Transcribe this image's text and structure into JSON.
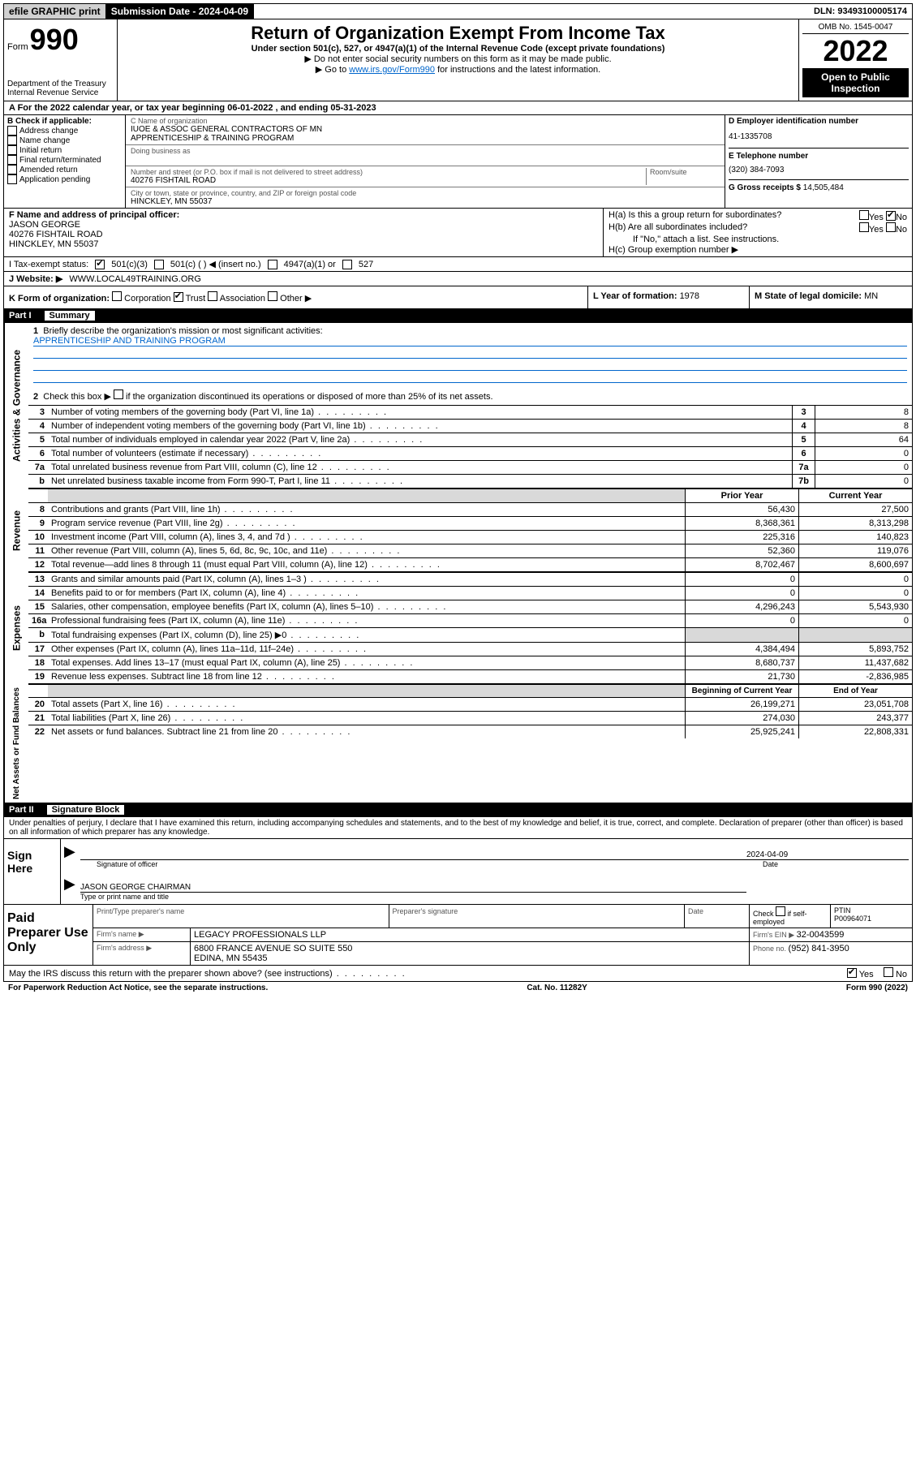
{
  "topbar": {
    "efile": "efile GRAPHIC print",
    "submission_label": "Submission Date - ",
    "submission_date": "2024-04-09",
    "dln_label": "DLN: ",
    "dln": "93493100005174"
  },
  "header": {
    "form_word": "Form",
    "form_num": "990",
    "dept": "Department of the Treasury Internal Revenue Service",
    "title": "Return of Organization Exempt From Income Tax",
    "subtitle": "Under section 501(c), 527, or 4947(a)(1) of the Internal Revenue Code (except private foundations)",
    "instr1": "▶ Do not enter social security numbers on this form as it may be made public.",
    "instr2_pre": "▶ Go to ",
    "instr2_link": "www.irs.gov/Form990",
    "instr2_post": " for instructions and the latest information.",
    "omb": "OMB No. 1545-0047",
    "year": "2022",
    "open": "Open to Public Inspection"
  },
  "rowA": {
    "text_pre": "A For the 2022 calendar year, or tax year beginning ",
    "begin": "06-01-2022",
    "mid": "   , and ending ",
    "end": "05-31-2023"
  },
  "colB": {
    "header": "B Check if applicable:",
    "items": [
      "Address change",
      "Name change",
      "Initial return",
      "Final return/terminated",
      "Amended return",
      "Application pending"
    ]
  },
  "colC": {
    "name_label": "C Name of organization",
    "name1": "IUOE & ASSOC GENERAL CONTRACTORS OF MN",
    "name2": "APPRENTICESHIP & TRAINING PROGRAM",
    "dba_label": "Doing business as",
    "street_label": "Number and street (or P.O. box if mail is not delivered to street address)",
    "room_label": "Room/suite",
    "street": "40276 FISHTAIL ROAD",
    "city_label": "City or town, state or province, country, and ZIP or foreign postal code",
    "city": "HINCKLEY, MN  55037"
  },
  "colD": {
    "ein_label": "D Employer identification number",
    "ein": "41-1335708",
    "phone_label": "E Telephone number",
    "phone": "(320) 384-7093",
    "gross_label": "G Gross receipts $ ",
    "gross": "14,505,484"
  },
  "rowF": {
    "label": "F Name and address of principal officer:",
    "name": "JASON GEORGE",
    "addr1": "40276 FISHTAIL ROAD",
    "addr2": "HINCKLEY, MN  55037",
    "ha": "H(a)  Is this a group return for subordinates?",
    "hb": "H(b)  Are all subordinates included?",
    "hb_note": "If \"No,\" attach a list. See instructions.",
    "hc": "H(c)  Group exemption number ▶"
  },
  "rowI": {
    "label": "I    Tax-exempt status:",
    "opts": [
      "501(c)(3)",
      "501(c) (  ) ◀ (insert no.)",
      "4947(a)(1) or",
      "527"
    ]
  },
  "rowJ": {
    "label": "J    Website: ▶",
    "value": " WWW.LOCAL49TRAINING.ORG"
  },
  "rowK": {
    "label": "K Form of organization:",
    "opts": [
      "Corporation",
      "Trust",
      "Association",
      "Other ▶"
    ],
    "l_label": "L Year of formation: ",
    "l_val": "1978",
    "m_label": "M State of legal domicile: ",
    "m_val": "MN"
  },
  "partI": {
    "num": "Part I",
    "title": "Summary"
  },
  "governance": {
    "label": "Activities & Governance",
    "q1": "Briefly describe the organization's mission or most significant activities:",
    "mission": "APPRENTICESHIP AND TRAINING PROGRAM",
    "q2": "Check this box ▶",
    "q2b": " if the organization discontinued its operations or disposed of more than 25% of its net assets.",
    "rows": [
      {
        "n": "3",
        "t": "Number of voting members of the governing body (Part VI, line 1a)",
        "bn": "3",
        "v": "8"
      },
      {
        "n": "4",
        "t": "Number of independent voting members of the governing body (Part VI, line 1b)",
        "bn": "4",
        "v": "8"
      },
      {
        "n": "5",
        "t": "Total number of individuals employed in calendar year 2022 (Part V, line 2a)",
        "bn": "5",
        "v": "64"
      },
      {
        "n": "6",
        "t": "Total number of volunteers (estimate if necessary)",
        "bn": "6",
        "v": "0"
      },
      {
        "n": "7a",
        "t": "Total unrelated business revenue from Part VIII, column (C), line 12",
        "bn": "7a",
        "v": "0"
      },
      {
        "n": "b",
        "t": "Net unrelated business taxable income from Form 990-T, Part I, line 11",
        "bn": "7b",
        "v": "0"
      }
    ]
  },
  "revenue": {
    "label": "Revenue",
    "header_py": "Prior Year",
    "header_cy": "Current Year",
    "rows": [
      {
        "n": "8",
        "t": "Contributions and grants (Part VIII, line 1h)",
        "py": "56,430",
        "cy": "27,500"
      },
      {
        "n": "9",
        "t": "Program service revenue (Part VIII, line 2g)",
        "py": "8,368,361",
        "cy": "8,313,298"
      },
      {
        "n": "10",
        "t": "Investment income (Part VIII, column (A), lines 3, 4, and 7d )",
        "py": "225,316",
        "cy": "140,823"
      },
      {
        "n": "11",
        "t": "Other revenue (Part VIII, column (A), lines 5, 6d, 8c, 9c, 10c, and 11e)",
        "py": "52,360",
        "cy": "119,076"
      },
      {
        "n": "12",
        "t": "Total revenue—add lines 8 through 11 (must equal Part VIII, column (A), line 12)",
        "py": "8,702,467",
        "cy": "8,600,697"
      }
    ]
  },
  "expenses": {
    "label": "Expenses",
    "rows": [
      {
        "n": "13",
        "t": "Grants and similar amounts paid (Part IX, column (A), lines 1–3 )",
        "py": "0",
        "cy": "0"
      },
      {
        "n": "14",
        "t": "Benefits paid to or for members (Part IX, column (A), line 4)",
        "py": "0",
        "cy": "0"
      },
      {
        "n": "15",
        "t": "Salaries, other compensation, employee benefits (Part IX, column (A), lines 5–10)",
        "py": "4,296,243",
        "cy": "5,543,930"
      },
      {
        "n": "16a",
        "t": "Professional fundraising fees (Part IX, column (A), line 11e)",
        "py": "0",
        "cy": "0"
      },
      {
        "n": "b",
        "t": "Total fundraising expenses (Part IX, column (D), line 25) ▶0",
        "py": "",
        "cy": "",
        "grey": true
      },
      {
        "n": "17",
        "t": "Other expenses (Part IX, column (A), lines 11a–11d, 11f–24e)",
        "py": "4,384,494",
        "cy": "5,893,752"
      },
      {
        "n": "18",
        "t": "Total expenses. Add lines 13–17 (must equal Part IX, column (A), line 25)",
        "py": "8,680,737",
        "cy": "11,437,682"
      },
      {
        "n": "19",
        "t": "Revenue less expenses. Subtract line 18 from line 12",
        "py": "21,730",
        "cy": "-2,836,985"
      }
    ]
  },
  "netassets": {
    "label": "Net Assets or Fund Balances",
    "header_py": "Beginning of Current Year",
    "header_cy": "End of Year",
    "rows": [
      {
        "n": "20",
        "t": "Total assets (Part X, line 16)",
        "py": "26,199,271",
        "cy": "23,051,708"
      },
      {
        "n": "21",
        "t": "Total liabilities (Part X, line 26)",
        "py": "274,030",
        "cy": "243,377"
      },
      {
        "n": "22",
        "t": "Net assets or fund balances. Subtract line 21 from line 20",
        "py": "25,925,241",
        "cy": "22,808,331"
      }
    ]
  },
  "partII": {
    "num": "Part II",
    "title": "Signature Block"
  },
  "penalties": "Under penalties of perjury, I declare that I have examined this return, including accompanying schedules and statements, and to the best of my knowledge and belief, it is true, correct, and complete. Declaration of preparer (other than officer) is based on all information of which preparer has any knowledge.",
  "sign": {
    "left": "Sign Here",
    "sig_label": "Signature of officer",
    "date_label": "Date",
    "date_val": "2024-04-09",
    "name": "JASON GEORGE CHAIRMAN",
    "name_label": "Type or print name and title"
  },
  "preparer": {
    "left": "Paid Preparer Use Only",
    "r1": {
      "c1": "Print/Type preparer's name",
      "c2": "Preparer's signature",
      "c3": "Date",
      "c4a": "Check",
      "c4b": " if self-employed",
      "ptin_label": "PTIN",
      "ptin": "P00964071"
    },
    "r2": {
      "label": "Firm's name     ▶",
      "val": "LEGACY PROFESSIONALS LLP",
      "ein_label": "Firm's EIN ▶ ",
      "ein": "32-0043599"
    },
    "r3": {
      "label": "Firm's address ▶",
      "addr1": "6800 FRANCE AVENUE SO SUITE 550",
      "addr2": "EDINA, MN  55435",
      "phone_label": "Phone no. ",
      "phone": "(952) 841-3950"
    }
  },
  "footer": {
    "irs_q": "May the IRS discuss this return with the preparer shown above? (see instructions)",
    "yes": "Yes",
    "no": "No",
    "paperwork": "For Paperwork Reduction Act Notice, see the separate instructions.",
    "cat": "Cat. No. 11282Y",
    "form": "Form 990 (2022)"
  }
}
